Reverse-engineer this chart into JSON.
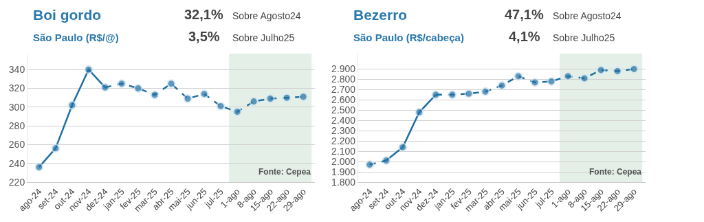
{
  "chart_data": [
    {
      "type": "line",
      "title": "Boi gordo",
      "subtitle": "São Paulo (R$/@)",
      "annotations": [
        "32,1%",
        "Sobre Agosto24",
        "3,5%",
        "Sobre Julho25",
        "Fonte: Cepea"
      ],
      "categories": [
        "ago-24",
        "set-24",
        "out-24",
        "nov-24",
        "dez-24",
        "jan-25",
        "fev-25",
        "mar-25",
        "abr-25",
        "mai-25",
        "jun-25",
        "jul-25",
        "1-ago",
        "8-ago",
        "15-ago",
        "22-ago",
        "29-ago"
      ],
      "series": [
        {
          "color": "#1f6fa3",
          "line_style": "solid",
          "values": [
            236,
            256,
            302,
            340,
            321,
            null,
            null,
            null,
            null,
            null,
            null,
            null,
            null,
            null,
            null,
            null,
            null
          ]
        },
        {
          "color": "#1f6fa3",
          "line_style": "dashed",
          "values": [
            null,
            null,
            null,
            null,
            321,
            325,
            320,
            313,
            325,
            309,
            314,
            301,
            295,
            306,
            309,
            310,
            311
          ]
        }
      ],
      "ylim": [
        220,
        357
      ],
      "yticks": [
        220,
        240,
        260,
        280,
        300,
        320,
        340
      ],
      "bands": [
        {
          "axis": "x",
          "from": "1-ago",
          "to": "29-ago",
          "color": "#e4efe8"
        }
      ],
      "grid": "y",
      "marker": "circle"
    },
    {
      "type": "line",
      "title": "Bezerro",
      "subtitle": "São Paulo (R$/cabeça)",
      "annotations": [
        "47,1%",
        "Sobre Agosto24",
        "4,1%",
        "Sobre Julho25",
        "Fonte: Cepea"
      ],
      "categories": [
        "ago-24",
        "set-24",
        "out-24",
        "nov-24",
        "dez-24",
        "jan-25",
        "fev-25",
        "mar-25",
        "abr-25",
        "mai-25",
        "jun-25",
        "jul-25",
        "1-ago",
        "8-ago",
        "15-ago",
        "22-ago",
        "29-ago"
      ],
      "series": [
        {
          "color": "#1f6fa3",
          "line_style": "solid",
          "values": [
            null,
            2010,
            2140,
            2480,
            2650,
            null,
            null,
            null,
            null,
            null,
            null,
            null,
            null,
            null,
            null,
            null,
            null
          ]
        },
        {
          "color": "#1f6fa3",
          "line_style": "dashed",
          "values": [
            1970,
            2010,
            null,
            null,
            2650,
            2650,
            2660,
            2680,
            2740,
            2830,
            2770,
            2780,
            2830,
            2810,
            2890,
            2880,
            2900
          ]
        }
      ],
      "ylim": [
        1800,
        3050
      ],
      "yticks": [
        {
          "value": 1800,
          "label": "1.800"
        },
        {
          "value": 1900,
          "label": "1.900"
        },
        {
          "value": 2000,
          "label": "2.000"
        },
        {
          "value": 2100,
          "label": "2.100"
        },
        {
          "value": 2200,
          "label": "2.200"
        },
        {
          "value": 2300,
          "label": "2.300"
        },
        {
          "value": 2400,
          "label": "2.400"
        },
        {
          "value": 2500,
          "label": "2.500"
        },
        {
          "value": 2600,
          "label": "2.600"
        },
        {
          "value": 2700,
          "label": "2.700"
        },
        {
          "value": 2800,
          "label": "2.800"
        },
        {
          "value": 2900,
          "label": "2.900"
        }
      ],
      "bands": [
        {
          "axis": "x",
          "from": "1-ago",
          "to": "29-ago",
          "color": "#e4efe8"
        }
      ],
      "grid": "y",
      "marker": "circle"
    }
  ]
}
